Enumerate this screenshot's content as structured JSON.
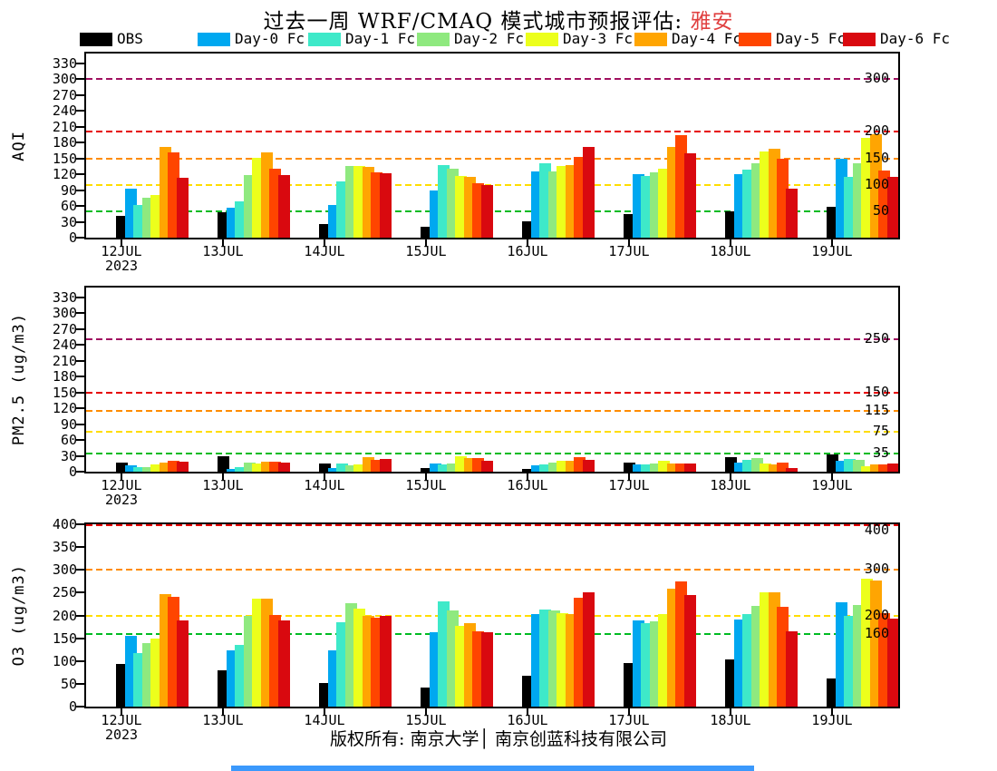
{
  "title": {
    "prefix": "过去一周 WRF/CMAQ 模式城市预报评估: ",
    "city": "雅安"
  },
  "legend": {
    "items": [
      {
        "label": "OBS",
        "color": "#000000"
      },
      {
        "label": "Day-0 Fc",
        "color": "#00a8f0"
      },
      {
        "label": "Day-1 Fc",
        "color": "#3ee9c9"
      },
      {
        "label": "Day-2 Fc",
        "color": "#8fe97f"
      },
      {
        "label": "Day-3 Fc",
        "color": "#ecff1c"
      },
      {
        "label": "Day-4 Fc",
        "color": "#ffa502"
      },
      {
        "label": "Day-5 Fc",
        "color": "#ff4500"
      },
      {
        "label": "Day-6 Fc",
        "color": "#d9090f"
      }
    ]
  },
  "footer": {
    "copyright": "版权所有: 南京大学│ 南京创蓝科技有限公司"
  },
  "ui": {
    "scrollbar_color": "#3b99fc"
  },
  "chart_data": [
    {
      "type": "bar",
      "ylabel": "AQI",
      "ylim": [
        0,
        348
      ],
      "yticks": [
        0,
        30,
        60,
        90,
        120,
        150,
        180,
        210,
        240,
        270,
        300,
        330
      ],
      "categories": [
        "12JUL",
        "13JUL",
        "14JUL",
        "15JUL",
        "16JUL",
        "17JUL",
        "18JUL",
        "19JUL"
      ],
      "first_category_sub": "2023",
      "grid": "off",
      "legend_position": "top",
      "reference_lines": [
        {
          "value": 50,
          "color": "#00bb22",
          "label": "50"
        },
        {
          "value": 100,
          "color": "#ffdd00",
          "label": "100"
        },
        {
          "value": 150,
          "color": "#ff8c00",
          "label": "150"
        },
        {
          "value": 200,
          "color": "#e60000",
          "label": "200"
        },
        {
          "value": 300,
          "color": "#a01060",
          "label": "300"
        }
      ],
      "series": [
        {
          "name": "OBS",
          "color": "#000000",
          "values": [
            42,
            48,
            26,
            20,
            31,
            44,
            50,
            58
          ]
        },
        {
          "name": "Day-0 Fc",
          "color": "#00a8f0",
          "values": [
            92,
            57,
            61,
            90,
            125,
            120,
            120,
            150
          ]
        },
        {
          "name": "Day-1 Fc",
          "color": "#3ee9c9",
          "values": [
            61,
            69,
            106,
            137,
            141,
            116,
            128,
            115
          ]
        },
        {
          "name": "Day-2 Fc",
          "color": "#8fe97f",
          "values": [
            75,
            119,
            135,
            131,
            126,
            124,
            140,
            140
          ]
        },
        {
          "name": "Day-3 Fc",
          "color": "#ecff1c",
          "values": [
            80,
            151,
            135,
            117,
            135,
            130,
            163,
            188
          ]
        },
        {
          "name": "Day-4 Fc",
          "color": "#ffa502",
          "values": [
            171,
            161,
            133,
            115,
            138,
            172,
            168,
            195
          ]
        },
        {
          "name": "Day-5 Fc",
          "color": "#ff4500",
          "values": [
            161,
            131,
            124,
            103,
            152,
            193,
            150,
            127
          ]
        },
        {
          "name": "Day-6 Fc",
          "color": "#d9090f",
          "values": [
            113,
            119,
            121,
            100,
            172,
            160,
            92,
            115
          ]
        }
      ]
    },
    {
      "type": "bar",
      "ylabel": "PM2.5 (ug/m3)",
      "ylim": [
        0,
        348
      ],
      "yticks": [
        0,
        30,
        60,
        90,
        120,
        150,
        180,
        210,
        240,
        270,
        300,
        330
      ],
      "categories": [
        "12JUL",
        "13JUL",
        "14JUL",
        "15JUL",
        "16JUL",
        "17JUL",
        "18JUL",
        "19JUL"
      ],
      "first_category_sub": "2023",
      "grid": "off",
      "legend_position": "top",
      "reference_lines": [
        {
          "value": 35,
          "color": "#00bb22",
          "label": "35"
        },
        {
          "value": 75,
          "color": "#ffdd00",
          "label": "75"
        },
        {
          "value": 115,
          "color": "#ff8c00",
          "label": "115"
        },
        {
          "value": 150,
          "color": "#e60000",
          "label": "150"
        },
        {
          "value": 250,
          "color": "#a01060",
          "label": "250"
        }
      ],
      "series": [
        {
          "name": "OBS",
          "color": "#000000",
          "values": [
            18,
            30,
            15,
            7,
            5,
            18,
            28,
            33
          ]
        },
        {
          "name": "Day-0 Fc",
          "color": "#00a8f0",
          "values": [
            12,
            5,
            7,
            16,
            12,
            13,
            17,
            20
          ]
        },
        {
          "name": "Day-1 Fc",
          "color": "#3ee9c9",
          "values": [
            8,
            8,
            16,
            14,
            14,
            14,
            22,
            24
          ]
        },
        {
          "name": "Day-2 Fc",
          "color": "#8fe97f",
          "values": [
            8,
            18,
            12,
            16,
            18,
            16,
            25,
            22
          ]
        },
        {
          "name": "Day-3 Fc",
          "color": "#ecff1c",
          "values": [
            13,
            15,
            14,
            29,
            20,
            20,
            16,
            11
          ]
        },
        {
          "name": "Day-4 Fc",
          "color": "#ffa502",
          "values": [
            17,
            19,
            27,
            25,
            21,
            15,
            13,
            13
          ]
        },
        {
          "name": "Day-5 Fc",
          "color": "#ff4500",
          "values": [
            21,
            19,
            23,
            25,
            28,
            15,
            17,
            13
          ]
        },
        {
          "name": "Day-6 Fc",
          "color": "#d9090f",
          "values": [
            19,
            17,
            24,
            21,
            23,
            15,
            7,
            16
          ]
        }
      ]
    },
    {
      "type": "bar",
      "ylabel": "O3 (ug/m3)",
      "ylim": [
        0,
        400
      ],
      "yticks": [
        0,
        50,
        100,
        150,
        200,
        250,
        300,
        350,
        400
      ],
      "categories": [
        "12JUL",
        "13JUL",
        "14JUL",
        "15JUL",
        "16JUL",
        "17JUL",
        "18JUL",
        "19JUL"
      ],
      "first_category_sub": "2023",
      "grid": "off",
      "legend_position": "top",
      "reference_lines": [
        {
          "value": 160,
          "color": "#00bb22",
          "label": "160"
        },
        {
          "value": 200,
          "color": "#ffdd00",
          "label": "200"
        },
        {
          "value": 300,
          "color": "#ff8c00",
          "label": "300"
        },
        {
          "value": 400,
          "color": "#e60000",
          "label": "400"
        }
      ],
      "series": [
        {
          "name": "OBS",
          "color": "#000000",
          "values": [
            94,
            80,
            51,
            41,
            68,
            95,
            103,
            62
          ]
        },
        {
          "name": "Day-0 Fc",
          "color": "#00a8f0",
          "values": [
            156,
            124,
            124,
            164,
            204,
            190,
            192,
            228
          ]
        },
        {
          "name": "Day-1 Fc",
          "color": "#3ee9c9",
          "values": [
            117,
            136,
            185,
            231,
            212,
            183,
            204,
            200
          ]
        },
        {
          "name": "Day-2 Fc",
          "color": "#8fe97f",
          "values": [
            140,
            200,
            227,
            211,
            211,
            188,
            221,
            222
          ]
        },
        {
          "name": "Day-3 Fc",
          "color": "#ecff1c",
          "values": [
            150,
            237,
            215,
            178,
            205,
            203,
            250,
            280
          ]
        },
        {
          "name": "Day-4 Fc",
          "color": "#ffa502",
          "values": [
            246,
            236,
            199,
            184,
            203,
            258,
            250,
            276
          ]
        },
        {
          "name": "Day-5 Fc",
          "color": "#ff4500",
          "values": [
            240,
            201,
            196,
            166,
            239,
            275,
            219,
            205
          ]
        },
        {
          "name": "Day-6 Fc",
          "color": "#d9090f",
          "values": [
            189,
            190,
            199,
            164,
            251,
            245,
            166,
            194
          ]
        }
      ]
    }
  ]
}
